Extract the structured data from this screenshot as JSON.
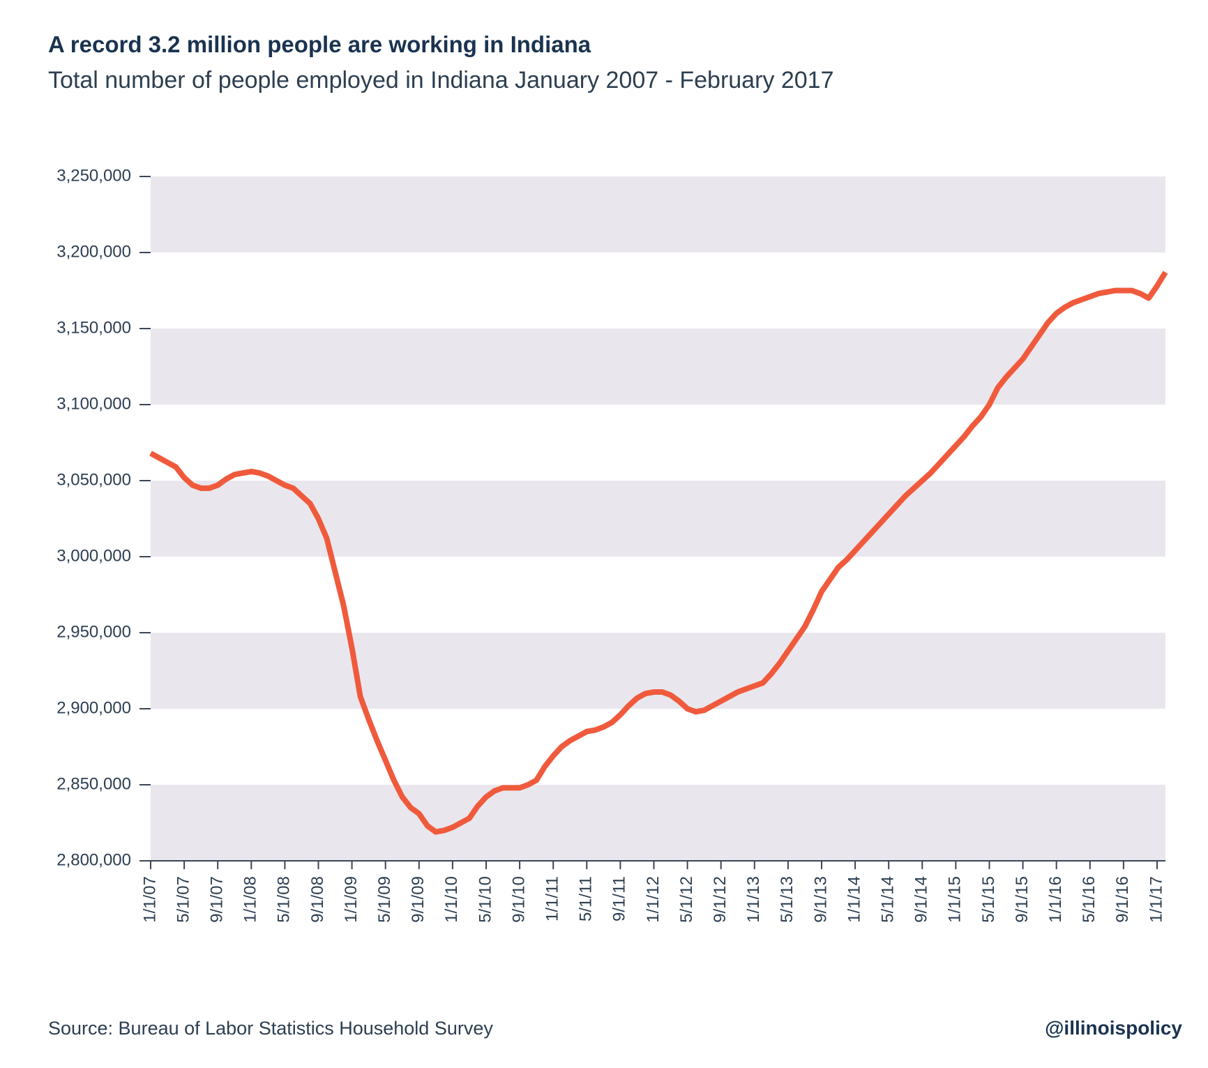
{
  "chart_data": {
    "type": "line",
    "title": "A record 3.2 million people are working in Indiana",
    "subtitle": "Total number of people employed in Indiana January 2007 - February 2017",
    "source": "Source: Bureau of Labor Statistics Household Survey",
    "credit": "@illinoispolicy",
    "categories": [
      "1/1/07",
      null,
      null,
      null,
      "5/1/07",
      null,
      null,
      null,
      "9/1/07",
      null,
      null,
      null,
      "1/1/08",
      null,
      null,
      null,
      "5/1/08",
      null,
      null,
      null,
      "9/1/08",
      null,
      null,
      null,
      "1/1/09",
      null,
      null,
      null,
      "5/1/09",
      null,
      null,
      null,
      "9/1/09",
      null,
      null,
      null,
      "1/1/10",
      null,
      null,
      null,
      "5/1/10",
      null,
      null,
      null,
      "9/1/10",
      null,
      null,
      null,
      "1/1/11",
      null,
      null,
      null,
      "5/1/11",
      null,
      null,
      null,
      "9/1/11",
      null,
      null,
      null,
      "1/1/12",
      null,
      null,
      null,
      "5/1/12",
      null,
      null,
      null,
      "9/1/12",
      null,
      null,
      null,
      "1/1/13",
      null,
      null,
      null,
      "5/1/13",
      null,
      null,
      null,
      "9/1/13",
      null,
      null,
      null,
      "1/1/14",
      null,
      null,
      null,
      "5/1/14",
      null,
      null,
      null,
      "9/1/14",
      null,
      null,
      null,
      "1/1/15",
      null,
      null,
      null,
      "5/1/15",
      null,
      null,
      null,
      "9/1/15",
      null,
      null,
      null,
      "1/1/16",
      null,
      null,
      null,
      "5/1/16",
      null,
      null,
      null,
      "9/1/16",
      null,
      null,
      null,
      "1/1/17",
      null
    ],
    "series": [
      {
        "name": "Employed",
        "color": "#f05a3c",
        "values": [
          3068000,
          3065000,
          3062000,
          3059000,
          3052000,
          3047000,
          3045000,
          3045000,
          3047000,
          3051000,
          3054000,
          3055000,
          3056000,
          3055000,
          3053000,
          3050000,
          3047000,
          3045000,
          3040000,
          3035000,
          3025000,
          3012000,
          2990000,
          2968000,
          2940000,
          2908000,
          2893000,
          2879000,
          2866000,
          2853000,
          2842000,
          2835000,
          2831000,
          2823000,
          2819000,
          2820000,
          2822000,
          2825000,
          2828000,
          2836000,
          2842000,
          2846000,
          2848000,
          2848000,
          2848000,
          2850000,
          2853000,
          2862000,
          2869000,
          2875000,
          2879000,
          2882000,
          2885000,
          2886000,
          2888000,
          2891000,
          2896000,
          2902000,
          2907000,
          2910000,
          2911000,
          2911000,
          2909000,
          2905000,
          2900000,
          2898000,
          2899000,
          2902000,
          2905000,
          2908000,
          2911000,
          2913000,
          2915000,
          2917000,
          2923000,
          2930000,
          2938000,
          2946000,
          2954000,
          2965000,
          2977000,
          2985000,
          2993000,
          2998000,
          3004000,
          3010000,
          3016000,
          3022000,
          3028000,
          3034000,
          3040000,
          3045000,
          3050000,
          3055000,
          3061000,
          3067000,
          3073000,
          3079000,
          3086000,
          3092000,
          3100000,
          3111000,
          3118000,
          3124000,
          3130000,
          3138000,
          3146000,
          3154000,
          3160000,
          3164000,
          3167000,
          3169000,
          3171000,
          3173000,
          3174000,
          3175000,
          3175000,
          3175000,
          3173000,
          3170000,
          3178000,
          3187000
        ]
      }
    ],
    "ylim": [
      2800000,
      3250000
    ],
    "yticks": [
      {
        "value": 2800000,
        "label": "2,800,000"
      },
      {
        "value": 2850000,
        "label": "2,850,000"
      },
      {
        "value": 2900000,
        "label": "2,900,000"
      },
      {
        "value": 2950000,
        "label": "2,950,000"
      },
      {
        "value": 3000000,
        "label": "3,000,000"
      },
      {
        "value": 3050000,
        "label": "3,050,000"
      },
      {
        "value": 3100000,
        "label": "3,100,000"
      },
      {
        "value": 3150000,
        "label": "3,150,000"
      },
      {
        "value": 3200000,
        "label": "3,200,000"
      },
      {
        "value": 3250000,
        "label": "3,250,000"
      }
    ],
    "grid": "bands",
    "band_color": "#e9e7ed"
  }
}
